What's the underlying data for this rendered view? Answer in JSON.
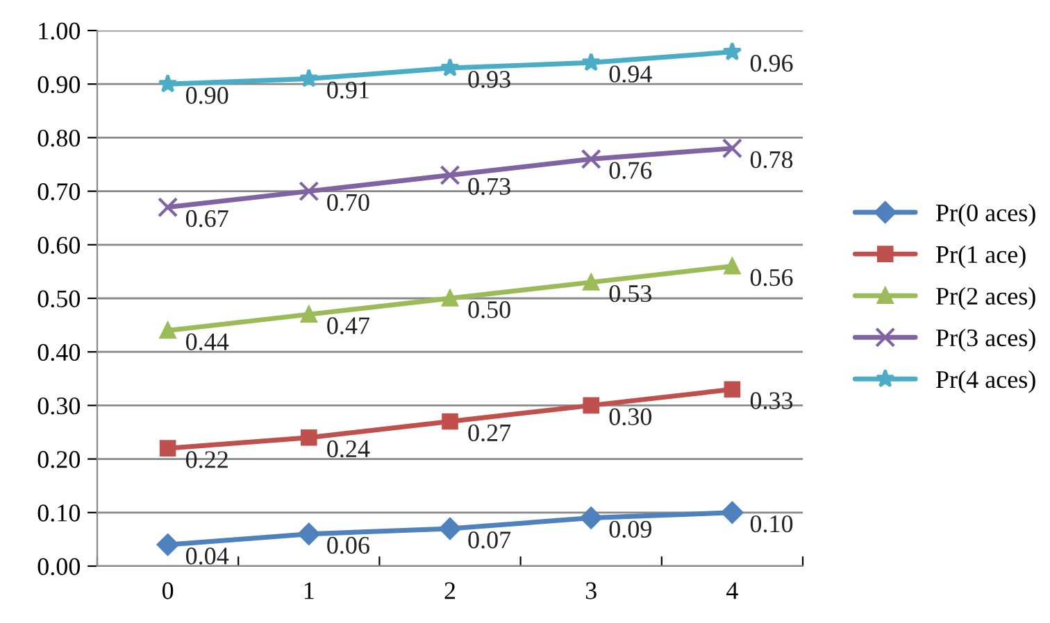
{
  "chart_data": {
    "type": "line",
    "categories": [
      "0",
      "1",
      "2",
      "3",
      "4"
    ],
    "series": [
      {
        "name": "Pr(0 aces)",
        "color": "#4f81bd",
        "marker": "diamond",
        "values": [
          0.04,
          0.06,
          0.07,
          0.09,
          0.1
        ],
        "value_labels": [
          "0.04",
          "0.06",
          "0.07",
          "0.09",
          "0.10"
        ]
      },
      {
        "name": "Pr(1 ace)",
        "color": "#c0504d",
        "marker": "square",
        "values": [
          0.22,
          0.24,
          0.27,
          0.3,
          0.33
        ],
        "value_labels": [
          "0.22",
          "0.24",
          "0.27",
          "0.30",
          "0.33"
        ]
      },
      {
        "name": "Pr(2 aces)",
        "color": "#9bbb59",
        "marker": "triangle",
        "values": [
          0.44,
          0.47,
          0.5,
          0.53,
          0.56
        ],
        "value_labels": [
          "0.44",
          "0.47",
          "0.50",
          "0.53",
          "0.56"
        ]
      },
      {
        "name": "Pr(3 aces)",
        "color": "#8064a2",
        "marker": "cross",
        "values": [
          0.67,
          0.7,
          0.73,
          0.76,
          0.78
        ],
        "value_labels": [
          "0.67",
          "0.70",
          "0.73",
          "0.76",
          "0.78"
        ]
      },
      {
        "name": "Pr(4 aces)",
        "color": "#4bacc6",
        "marker": "star",
        "values": [
          0.9,
          0.91,
          0.93,
          0.94,
          0.96
        ],
        "value_labels": [
          "0.90",
          "0.91",
          "0.93",
          "0.94",
          "0.96"
        ]
      }
    ],
    "ylim": [
      0,
      1
    ],
    "yticks": [
      {
        "value": 0,
        "label": "0.00"
      },
      {
        "value": 0.1,
        "label": "0.10"
      },
      {
        "value": 0.2,
        "label": "0.20"
      },
      {
        "value": 0.3,
        "label": "0.30"
      },
      {
        "value": 0.4,
        "label": "0.40"
      },
      {
        "value": 0.5,
        "label": "0.50"
      },
      {
        "value": 0.6,
        "label": "0.60"
      },
      {
        "value": 0.7,
        "label": "0.70"
      },
      {
        "value": 0.8,
        "label": "0.80"
      },
      {
        "value": 0.9,
        "label": "0.90"
      },
      {
        "value": 1,
        "label": "1.00"
      }
    ],
    "grid": "y",
    "legend": "right",
    "line_style": "solid"
  }
}
